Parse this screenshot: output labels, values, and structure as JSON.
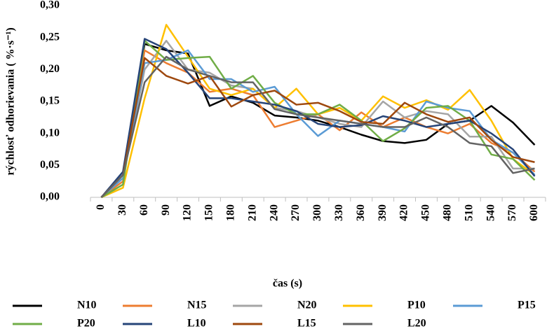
{
  "chart_data": {
    "type": "line",
    "x_label": "čas (s)",
    "y_label": "rýchlosť odhorievania ( %·s⁻¹)",
    "categories": [
      "0",
      "30",
      "60",
      "90",
      "120",
      "150",
      "180",
      "210",
      "240",
      "270",
      "300",
      "330",
      "360",
      "390",
      "420",
      "450",
      "480",
      "510",
      "540",
      "570",
      "600"
    ],
    "ylim": [
      0,
      0.3
    ],
    "yticks": [
      {
        "value": 0,
        "label": "0,00"
      },
      {
        "value": 0.05,
        "label": "0,05"
      },
      {
        "value": 0.1,
        "label": "0,10"
      },
      {
        "value": 0.15,
        "label": "0,15"
      },
      {
        "value": 0.2,
        "label": "0,20"
      },
      {
        "value": 0.25,
        "label": "0,25"
      },
      {
        "value": 0.3,
        "label": "0,30"
      }
    ],
    "series": [
      {
        "name": "N10",
        "color": "#000000",
        "values": [
          0,
          0.035,
          0.24,
          0.23,
          0.225,
          0.143,
          0.158,
          0.148,
          0.128,
          0.125,
          0.12,
          0.11,
          0.098,
          0.088,
          0.085,
          0.09,
          0.115,
          0.12,
          0.143,
          0.117,
          0.082
        ]
      },
      {
        "name": "N15",
        "color": "#ed7d31",
        "values": [
          0,
          0.025,
          0.23,
          0.21,
          0.195,
          0.165,
          0.17,
          0.16,
          0.11,
          0.12,
          0.13,
          0.105,
          0.133,
          0.11,
          0.125,
          0.11,
          0.1,
          0.115,
          0.085,
          0.07,
          0.04
        ]
      },
      {
        "name": "N20",
        "color": "#a5a5a5",
        "values": [
          0,
          0.03,
          0.2,
          0.245,
          0.2,
          0.195,
          0.175,
          0.17,
          0.14,
          0.135,
          0.125,
          0.115,
          0.11,
          0.15,
          0.125,
          0.135,
          0.13,
          0.095,
          0.095,
          0.045,
          0.045
        ]
      },
      {
        "name": "P10",
        "color": "#ffc000",
        "values": [
          0,
          0.015,
          0.155,
          0.27,
          0.22,
          0.17,
          0.16,
          0.17,
          0.14,
          0.17,
          0.13,
          0.14,
          0.12,
          0.158,
          0.14,
          0.152,
          0.137,
          0.168,
          0.12,
          0.06,
          0.035
        ]
      },
      {
        "name": "P15",
        "color": "#5b9bd5",
        "values": [
          0,
          0.03,
          0.21,
          0.215,
          0.23,
          0.185,
          0.185,
          0.165,
          0.173,
          0.13,
          0.096,
          0.12,
          0.115,
          0.11,
          0.103,
          0.15,
          0.14,
          0.135,
          0.09,
          0.07,
          0.035
        ]
      },
      {
        "name": "P20",
        "color": "#70ad47",
        "values": [
          0,
          0.02,
          0.245,
          0.215,
          0.218,
          0.22,
          0.17,
          0.19,
          0.148,
          0.13,
          0.13,
          0.145,
          0.12,
          0.088,
          0.108,
          0.14,
          0.143,
          0.12,
          0.067,
          0.06,
          0.027
        ]
      },
      {
        "name": "L10",
        "color": "#264478",
        "values": [
          0,
          0.04,
          0.248,
          0.232,
          0.195,
          0.155,
          0.155,
          0.15,
          0.145,
          0.135,
          0.115,
          0.11,
          0.113,
          0.127,
          0.12,
          0.11,
          0.115,
          0.12,
          0.1,
          0.075,
          0.033
        ]
      },
      {
        "name": "L15",
        "color": "#9e480e",
        "values": [
          0,
          0.035,
          0.218,
          0.19,
          0.178,
          0.19,
          0.142,
          0.16,
          0.167,
          0.145,
          0.148,
          0.135,
          0.118,
          0.115,
          0.148,
          0.13,
          0.118,
          0.125,
          0.09,
          0.063,
          0.055
        ]
      },
      {
        "name": "L20",
        "color": "#636363",
        "values": [
          0,
          0.035,
          0.18,
          0.22,
          0.2,
          0.19,
          0.18,
          0.18,
          0.138,
          0.13,
          0.125,
          0.12,
          0.115,
          0.11,
          0.11,
          0.125,
          0.11,
          0.085,
          0.08,
          0.038,
          0.045
        ]
      }
    ]
  }
}
